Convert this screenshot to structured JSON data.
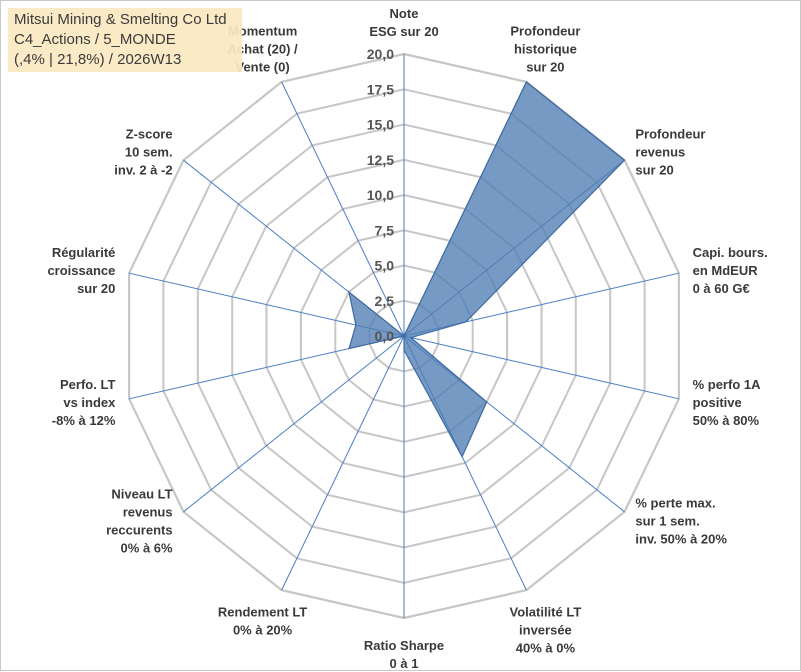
{
  "header": {
    "line1": "Mitsui Mining & Smelting Co Ltd",
    "line2": "C4_Actions / 5_MONDE",
    "line3": "(,4% | 21,8%) / 2026W13"
  },
  "chart_data": {
    "type": "radar",
    "rmax": 20,
    "tick_labels": [
      "0,0",
      "2,5",
      "5,0",
      "7,5",
      "10,0",
      "12,5",
      "15,0",
      "17,5",
      "20,0"
    ],
    "axes": [
      {
        "label": [
          "Note",
          "ESG sur 20"
        ],
        "value": 0
      },
      {
        "label": [
          "Profondeur",
          "historique",
          "sur 20"
        ],
        "value": 20
      },
      {
        "label": [
          "Profondeur",
          "revenus",
          "sur 20"
        ],
        "value": 20
      },
      {
        "label": [
          "Capi. bours.",
          "en MdEUR",
          "0 à 60 G€"
        ],
        "value": 4.5
      },
      {
        "label": [
          "% perfo 1A",
          "positive",
          "50% à 80%"
        ],
        "value": 0.5
      },
      {
        "label": [
          "% perte max.",
          "sur 1 sem.",
          "inv. 50% à 20%"
        ],
        "value": 7.5
      },
      {
        "label": [
          "Volatilité LT",
          "inversée",
          "40% à 0%"
        ],
        "value": 9.5
      },
      {
        "label": [
          "Ratio Sharpe",
          "0 à 1"
        ],
        "value": 1
      },
      {
        "label": [
          "Rendement LT",
          "0% à 20%"
        ],
        "value": 0
      },
      {
        "label": [
          "Niveau LT",
          "revenus",
          "reccurents",
          "0% à 6%"
        ],
        "value": 0
      },
      {
        "label": [
          "Perfo. LT",
          "vs index",
          "-8% à 12%"
        ],
        "value": 4
      },
      {
        "label": [
          "Régularité",
          "croissance",
          "sur 20"
        ],
        "value": 3.5
      },
      {
        "label": [
          "Z-score",
          "10 sem.",
          "inv. 2 à -2"
        ],
        "value": 5
      },
      {
        "label": [
          "Momentum",
          "Achat (20) /",
          "Vente (0)"
        ],
        "value": 0
      }
    ],
    "grid": true,
    "colors": {
      "fill": "#4f7db3",
      "stroke": "#3d6aa3",
      "grid": "#c6c6c6",
      "spoke": "#4a7ec4"
    }
  }
}
